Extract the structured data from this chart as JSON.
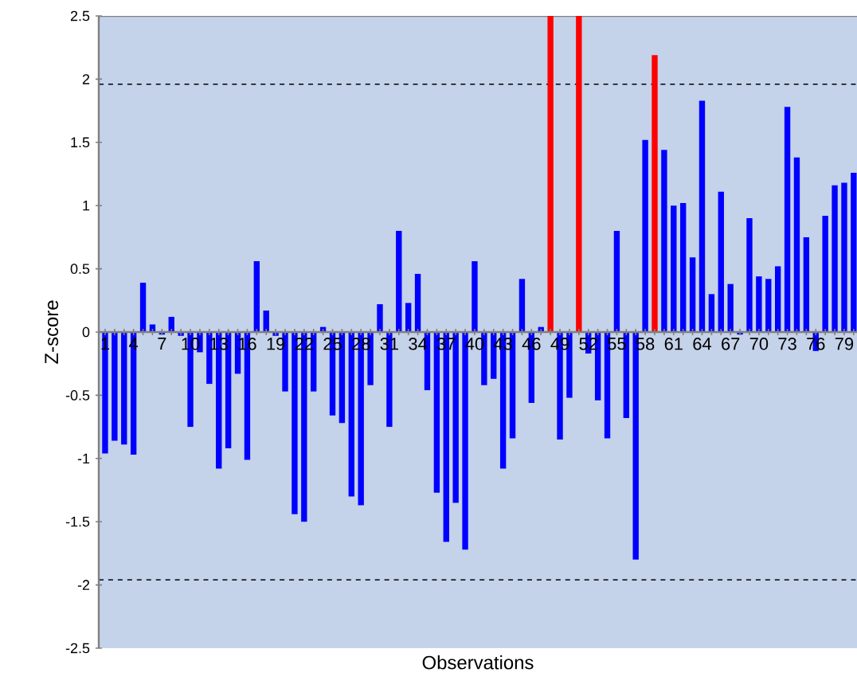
{
  "chart_data": {
    "type": "bar",
    "xlabel": "Observations",
    "ylabel": "Z-score",
    "categories": [
      "1",
      null,
      null,
      "4",
      null,
      null,
      "7",
      null,
      null,
      "10",
      null,
      null,
      "13",
      null,
      null,
      "16",
      null,
      null,
      "19",
      null,
      null,
      "22",
      null,
      null,
      "25",
      null,
      null,
      "28",
      null,
      null,
      "31",
      null,
      null,
      "34",
      null,
      null,
      "37",
      null,
      null,
      "40",
      null,
      null,
      "43",
      null,
      null,
      "46",
      null,
      null,
      "49",
      null,
      null,
      "52",
      null,
      null,
      "55",
      null,
      null,
      "58",
      null,
      null,
      "61",
      null,
      null,
      "64",
      null,
      null,
      "67",
      null,
      null,
      "70",
      null,
      null,
      "73",
      null,
      null,
      "76",
      null,
      null,
      "79",
      null
    ],
    "values": [
      -0.96,
      -0.86,
      -0.89,
      -0.97,
      0.39,
      0.06,
      -0.02,
      0.12,
      -0.03,
      -0.75,
      -0.16,
      -0.41,
      -1.08,
      -0.92,
      -0.33,
      -1.01,
      0.56,
      0.17,
      -0.03,
      -0.47,
      -1.44,
      -1.5,
      -0.47,
      0.04,
      -0.66,
      -0.72,
      -1.3,
      -1.37,
      -0.42,
      0.22,
      -0.75,
      0.8,
      0.23,
      0.46,
      -0.46,
      -1.27,
      -1.66,
      -1.35,
      -1.72,
      0.56,
      -0.42,
      -0.37,
      -1.08,
      -0.84,
      0.42,
      -0.56,
      0.04,
      2.5,
      -0.85,
      -0.52,
      2.5,
      -0.17,
      -0.54,
      -0.84,
      0.8,
      -0.68,
      -1.8,
      1.52,
      2.19,
      1.44,
      1.0,
      1.02,
      0.59,
      1.83,
      0.3,
      1.11,
      0.38,
      -0.02,
      0.9,
      0.44,
      0.42,
      0.52,
      1.78,
      1.38,
      0.75,
      -0.15,
      0.92,
      1.16,
      1.18,
      1.26
    ],
    "colors": [
      "#0000ff",
      "#0000ff",
      "#0000ff",
      "#0000ff",
      "#0000ff",
      "#0000ff",
      "#0000ff",
      "#0000ff",
      "#0000ff",
      "#0000ff",
      "#0000ff",
      "#0000ff",
      "#0000ff",
      "#0000ff",
      "#0000ff",
      "#0000ff",
      "#0000ff",
      "#0000ff",
      "#0000ff",
      "#0000ff",
      "#0000ff",
      "#0000ff",
      "#0000ff",
      "#0000ff",
      "#0000ff",
      "#0000ff",
      "#0000ff",
      "#0000ff",
      "#0000ff",
      "#0000ff",
      "#0000ff",
      "#0000ff",
      "#0000ff",
      "#0000ff",
      "#0000ff",
      "#0000ff",
      "#0000ff",
      "#0000ff",
      "#0000ff",
      "#0000ff",
      "#0000ff",
      "#0000ff",
      "#0000ff",
      "#0000ff",
      "#0000ff",
      "#0000ff",
      "#0000ff",
      "#ff0000",
      "#0000ff",
      "#0000ff",
      "#ff0000",
      "#0000ff",
      "#0000ff",
      "#0000ff",
      "#0000ff",
      "#0000ff",
      "#0000ff",
      "#0000ff",
      "#ff0000",
      "#0000ff",
      "#0000ff",
      "#0000ff",
      "#0000ff",
      "#0000ff",
      "#0000ff",
      "#0000ff",
      "#0000ff",
      "#0000ff",
      "#0000ff",
      "#0000ff",
      "#0000ff",
      "#0000ff",
      "#0000ff",
      "#0000ff",
      "#0000ff",
      "#0000ff",
      "#0000ff",
      "#0000ff",
      "#0000ff",
      "#0000ff"
    ],
    "ylim": [
      -2.5,
      2.5
    ],
    "yticks": [
      -2.5,
      -2,
      -1.5,
      -1,
      -0.5,
      0,
      0.5,
      1,
      1.5,
      2,
      2.5
    ],
    "ref_lines": [
      {
        "axis": "y",
        "value": 1.96,
        "color": "#000000",
        "line_style": "dashed"
      },
      {
        "axis": "y",
        "value": -1.96,
        "color": "#000000",
        "line_style": "dashed"
      }
    ]
  }
}
